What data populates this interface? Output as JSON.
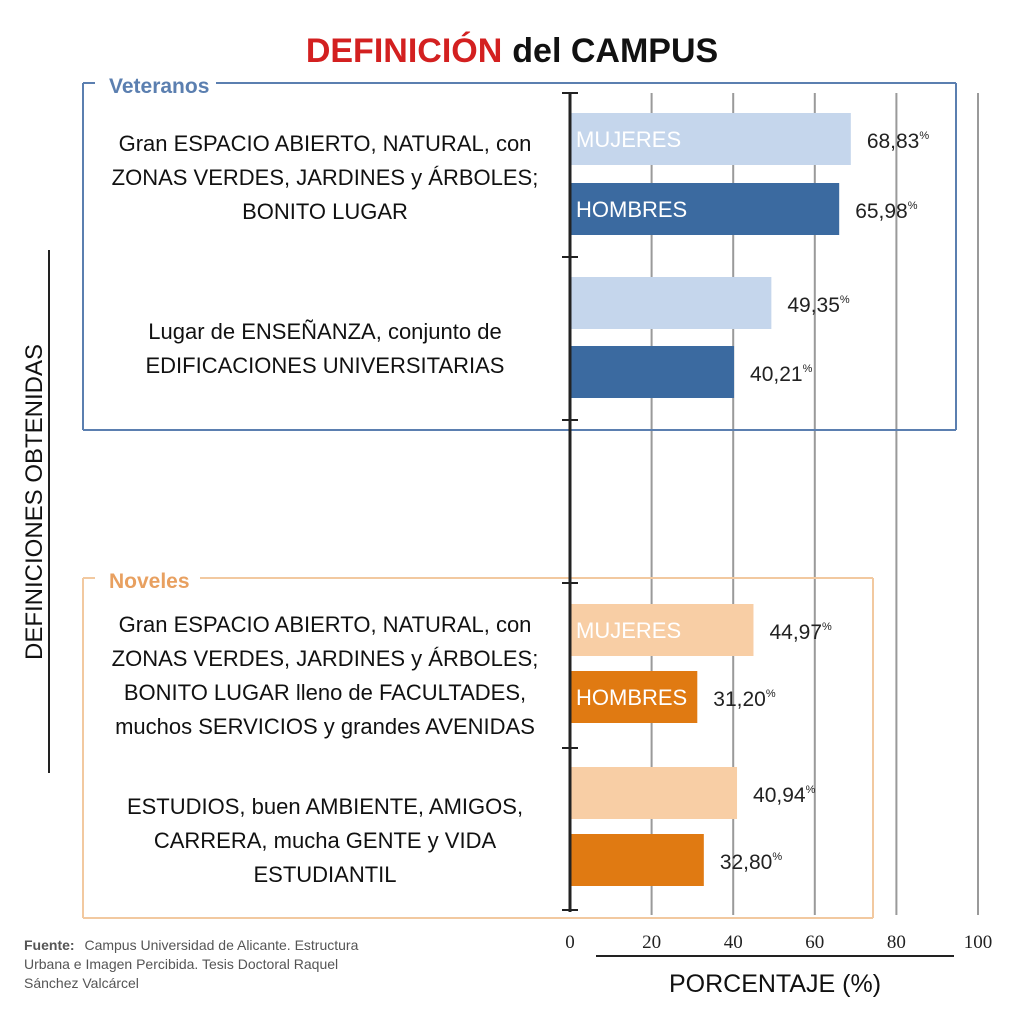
{
  "chart_data": {
    "type": "bar",
    "orientation": "horizontal",
    "title": {
      "highlight": "DEFINICIÓN",
      "rest": "del CAMPUS"
    },
    "xlabel": "PORCENTAJE (%)",
    "ylabel": "DEFINICIONES OBTENIDAS",
    "xlim": [
      0,
      100
    ],
    "xticks": [
      "0",
      "20",
      "40",
      "60",
      "80",
      "100"
    ],
    "grid": true,
    "value_suffix": "%",
    "bar_labels": {
      "women": "MUJERES",
      "men": "HOMBRES"
    },
    "groups": [
      {
        "name": "Veteranos",
        "frame_color": "#5b7fb0",
        "title_color": "#5b7fb0",
        "categories": [
          {
            "label": [
              "Gran ESPACIO ABIERTO, NATURAL, con",
              "ZONAS VERDES, JARDINES y ÁRBOLES;",
              "BONITO LUGAR"
            ],
            "values": [
              {
                "series": "MUJERES",
                "value": 68.83,
                "value_label": "68,83",
                "color": "#c5d6ec",
                "show_name": true
              },
              {
                "series": "HOMBRES",
                "value": 65.98,
                "value_label": "65,98",
                "color": "#3b6aa0",
                "show_name": true
              }
            ]
          },
          {
            "label": [
              "Lugar de ENSEÑANZA, conjunto de",
              "EDIFICACIONES UNIVERSITARIAS"
            ],
            "values": [
              {
                "series": "MUJERES",
                "value": 49.35,
                "value_label": "49,35",
                "color": "#c5d6ec",
                "show_name": false
              },
              {
                "series": "HOMBRES",
                "value": 40.21,
                "value_label": "40,21",
                "color": "#3b6aa0",
                "show_name": false
              }
            ]
          }
        ]
      },
      {
        "name": "Noveles",
        "frame_color": "#f2c9a0",
        "title_color": "#e8a060",
        "categories": [
          {
            "label": [
              "Gran ESPACIO ABIERTO, NATURAL, con",
              "ZONAS VERDES, JARDINES y ÁRBOLES;",
              "BONITO LUGAR lleno de FACULTADES,",
              "muchos SERVICIOS y grandes AVENIDAS"
            ],
            "values": [
              {
                "series": "MUJERES",
                "value": 44.97,
                "value_label": "44,97",
                "color": "#f8cea5",
                "show_name": true
              },
              {
                "series": "HOMBRES",
                "value": 31.2,
                "value_label": "31,20",
                "color": "#e07a12",
                "show_name": true
              }
            ]
          },
          {
            "label": [
              "ESTUDIOS, buen AMBIENTE, AMIGOS,",
              "CARRERA, mucha GENTE y VIDA",
              "ESTUDIANTIL"
            ],
            "values": [
              {
                "series": "MUJERES",
                "value": 40.94,
                "value_label": "40,94",
                "color": "#f8cea5",
                "show_name": false
              },
              {
                "series": "HOMBRES",
                "value": 32.8,
                "value_label": "32,80",
                "color": "#e07a12",
                "show_name": false
              }
            ]
          }
        ]
      }
    ],
    "source": {
      "label": "Fuente:",
      "text": "Campus Universidad de Alicante. Estructura Urbana e Imagen Percibida. Tesis Doctoral Raquel Sánchez Valcárcel"
    },
    "colors": {
      "title_highlight": "#d32020",
      "title_rest": "#111111",
      "grid": "#9a9a9a",
      "axis": "#222222"
    }
  }
}
